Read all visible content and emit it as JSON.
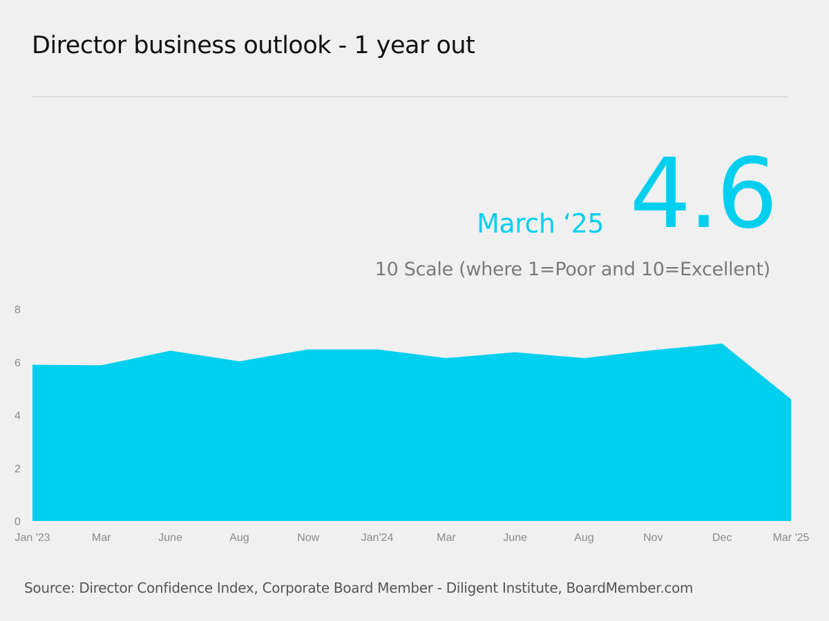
{
  "header": {
    "title": "Director business outlook - 1 year out"
  },
  "highlight": {
    "label": "March ‘25",
    "value": "4.6",
    "scale_note": "10 Scale (where 1=Poor and 10=Excellent)"
  },
  "footer": {
    "source": "Source: Director Confidence Index, Corporate Board Member - Diligent Institute, BoardMember.com"
  },
  "colors": {
    "accent": "#00cfee",
    "background": "#f0f0f0",
    "divider": "#c6c6c6",
    "axis_text": "#8a8a8a"
  },
  "chart_data": {
    "type": "area",
    "title": "",
    "xlabel": "",
    "ylabel": "",
    "categories": [
      "Jan '23",
      "Mar",
      "June",
      "Aug",
      "Now",
      "Jan'24",
      "Mar",
      "June",
      "Aug",
      "Nov",
      "Dec",
      "Mar '25"
    ],
    "values": [
      5.9,
      5.88,
      6.43,
      6.03,
      6.48,
      6.48,
      6.15,
      6.37,
      6.15,
      6.45,
      6.7,
      4.6
    ],
    "ylim": [
      0,
      8
    ],
    "yticks": [
      0,
      2,
      4,
      6,
      8
    ],
    "grid": false,
    "legend": "none",
    "color": "#00cfee"
  }
}
